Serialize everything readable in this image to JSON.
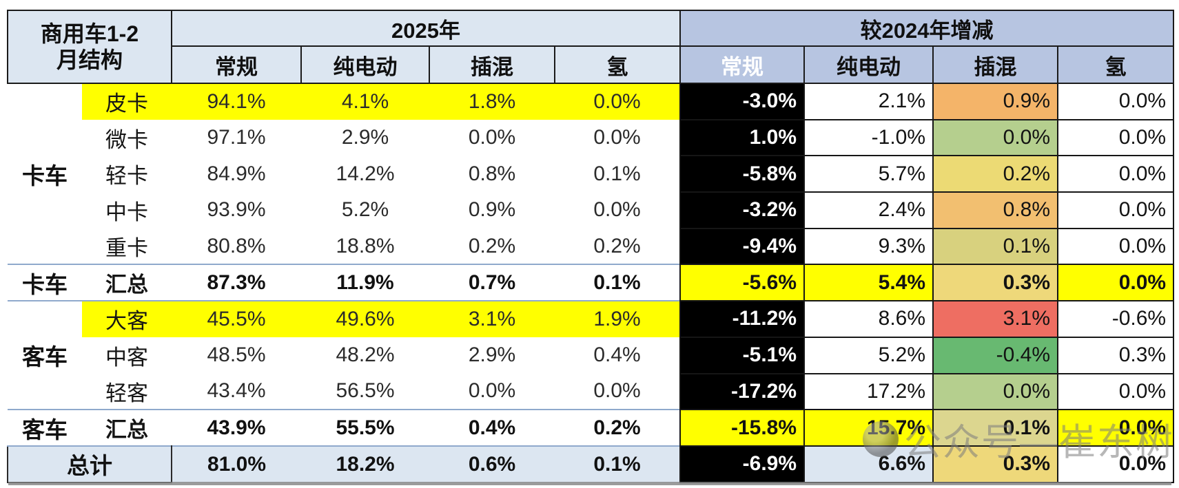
{
  "watermark": {
    "text": "公众号—崔东树"
  },
  "palette": {
    "header_left_bg": "#dce6f1",
    "header_right_bg": "#b7c5e1",
    "separator_blue": "#8fa9cc",
    "highlight_yellow": "#ffff00",
    "total_row_blue": "#dce6f1",
    "cell_colors": {
      "black": "#000000",
      "white": "#ffffff",
      "yellow": "#ffff00",
      "orange": "#f4b469",
      "orange_light": "#f2bf70",
      "khaki": "#ecda74",
      "olive": "#d8d17e",
      "olive_light": "#dcd68f",
      "tan": "#eed87a",
      "green": "#68b971",
      "green_light": "#b5cf8e",
      "red": "#ee6e62",
      "blue_light": "#dce6f1"
    }
  },
  "chart_data": {
    "type": "table",
    "title": "商用车1-2月结构",
    "title_line1": "商用车1-2",
    "title_line2": "月结构",
    "col_group_left": "2025年",
    "col_group_right": "较2024年增减",
    "columns": [
      "常规",
      "纯电动",
      "插混",
      "氢"
    ],
    "rows": [
      {
        "group": "",
        "label": "皮卡",
        "row_style": "highlight",
        "sep_above": false,
        "y2025": [
          "94.1%",
          "4.1%",
          "1.8%",
          "0.0%"
        ],
        "vs2024": [
          "-3.0%",
          "2.1%",
          "0.9%",
          "0.0%"
        ],
        "vs_bg": [
          "black",
          "white",
          "orange",
          "white"
        ]
      },
      {
        "group": "",
        "label": "微卡",
        "row_style": "normal",
        "sep_above": false,
        "y2025": [
          "97.1%",
          "2.9%",
          "0.0%",
          "0.0%"
        ],
        "vs2024": [
          "1.0%",
          "-1.0%",
          "0.0%",
          "0.0%"
        ],
        "vs_bg": [
          "black",
          "white",
          "green_light",
          "white"
        ]
      },
      {
        "group": "卡车",
        "label": "轻卡",
        "row_style": "normal",
        "sep_above": false,
        "y2025": [
          "84.9%",
          "14.2%",
          "0.8%",
          "0.1%"
        ],
        "vs2024": [
          "-5.8%",
          "5.7%",
          "0.2%",
          "0.0%"
        ],
        "vs_bg": [
          "black",
          "white",
          "khaki",
          "white"
        ]
      },
      {
        "group": "",
        "label": "中卡",
        "row_style": "normal",
        "sep_above": false,
        "y2025": [
          "93.9%",
          "5.2%",
          "0.9%",
          "0.0%"
        ],
        "vs2024": [
          "-3.2%",
          "2.4%",
          "0.8%",
          "0.0%"
        ],
        "vs_bg": [
          "black",
          "white",
          "orange_light",
          "white"
        ]
      },
      {
        "group": "",
        "label": "重卡",
        "row_style": "normal",
        "sep_above": false,
        "y2025": [
          "80.8%",
          "18.8%",
          "0.2%",
          "0.2%"
        ],
        "vs2024": [
          "-9.4%",
          "9.3%",
          "0.1%",
          "0.0%"
        ],
        "vs_bg": [
          "black",
          "white",
          "olive",
          "white"
        ]
      },
      {
        "group": "卡车",
        "label": "汇总",
        "row_style": "subtotal",
        "sep_above": true,
        "y2025": [
          "87.3%",
          "11.9%",
          "0.7%",
          "0.1%"
        ],
        "vs2024": [
          "-5.6%",
          "5.4%",
          "0.3%",
          "0.0%"
        ],
        "vs_bg": [
          "yellow",
          "yellow",
          "tan",
          "yellow"
        ]
      },
      {
        "group": "",
        "label": "大客",
        "row_style": "highlight",
        "sep_above": true,
        "y2025": [
          "45.5%",
          "49.6%",
          "3.1%",
          "1.9%"
        ],
        "vs2024": [
          "-11.2%",
          "8.6%",
          "3.1%",
          "-0.6%"
        ],
        "vs_bg": [
          "black",
          "white",
          "red",
          "white"
        ]
      },
      {
        "group": "客车",
        "label": "中客",
        "row_style": "normal",
        "sep_above": false,
        "y2025": [
          "48.5%",
          "48.2%",
          "2.9%",
          "0.4%"
        ],
        "vs2024": [
          "-5.1%",
          "5.2%",
          "-0.4%",
          "0.3%"
        ],
        "vs_bg": [
          "black",
          "white",
          "green",
          "white"
        ]
      },
      {
        "group": "",
        "label": "轻客",
        "row_style": "normal",
        "sep_above": false,
        "y2025": [
          "43.4%",
          "56.5%",
          "0.0%",
          "0.0%"
        ],
        "vs2024": [
          "-17.2%",
          "17.2%",
          "0.0%",
          "0.0%"
        ],
        "vs_bg": [
          "black",
          "white",
          "green_light",
          "white"
        ]
      },
      {
        "group": "客车",
        "label": "汇总",
        "row_style": "subtotal",
        "sep_above": true,
        "y2025": [
          "43.9%",
          "55.5%",
          "0.4%",
          "0.2%"
        ],
        "vs2024": [
          "-15.8%",
          "15.7%",
          "0.1%",
          "0.0%"
        ],
        "vs_bg": [
          "yellow",
          "yellow",
          "olive_light",
          "yellow"
        ]
      },
      {
        "group": "总计",
        "label": "",
        "row_style": "total",
        "sep_above": true,
        "y2025": [
          "81.0%",
          "18.2%",
          "0.6%",
          "0.1%"
        ],
        "vs2024": [
          "-6.9%",
          "6.6%",
          "0.3%",
          "0.0%"
        ],
        "vs_bg": [
          "black",
          "blue_light",
          "tan",
          "white"
        ]
      }
    ]
  }
}
